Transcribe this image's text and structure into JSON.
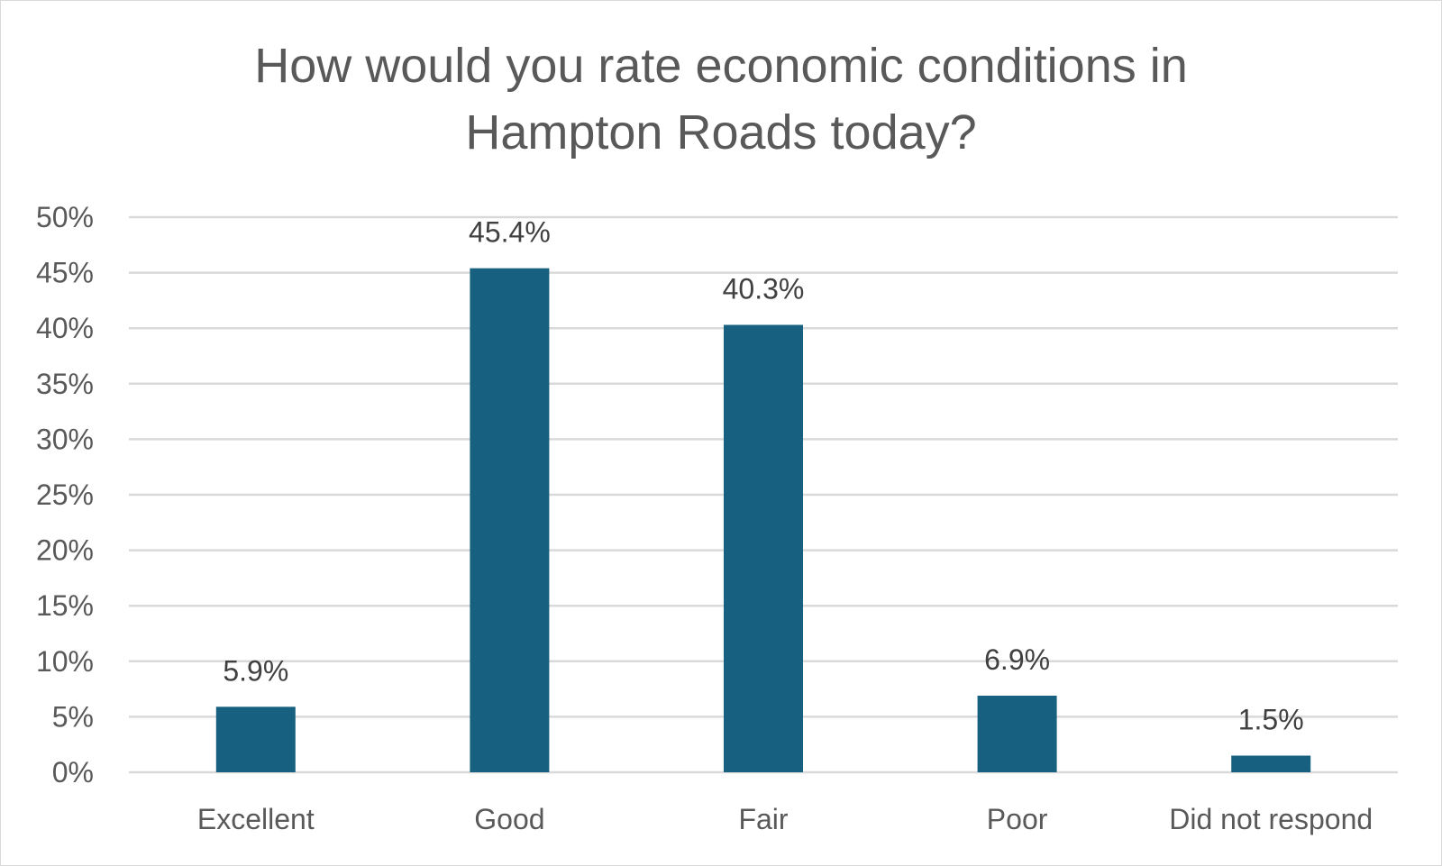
{
  "chart_data": {
    "type": "bar",
    "title": "How would you rate economic conditions in Hampton Roads today?",
    "title_lines": [
      "How would you rate economic conditions in",
      "Hampton Roads today?"
    ],
    "categories": [
      "Excellent",
      "Good",
      "Fair",
      "Poor",
      "Did not respond"
    ],
    "values": [
      5.9,
      45.4,
      40.3,
      6.9,
      1.5
    ],
    "data_labels": [
      "5.9%",
      "45.4%",
      "40.3%",
      "6.9%",
      "1.5%"
    ],
    "ylim": [
      0,
      50
    ],
    "yticks": [
      0,
      5,
      10,
      15,
      20,
      25,
      30,
      35,
      40,
      45,
      50
    ],
    "ytick_labels": [
      "0%",
      "5%",
      "10%",
      "15%",
      "20%",
      "25%",
      "30%",
      "35%",
      "40%",
      "45%",
      "50%"
    ],
    "xlabel": "",
    "ylabel": "",
    "grid": true,
    "legend": "none",
    "bar_color": "#17607f",
    "grid_color": "#d9d9d9"
  }
}
